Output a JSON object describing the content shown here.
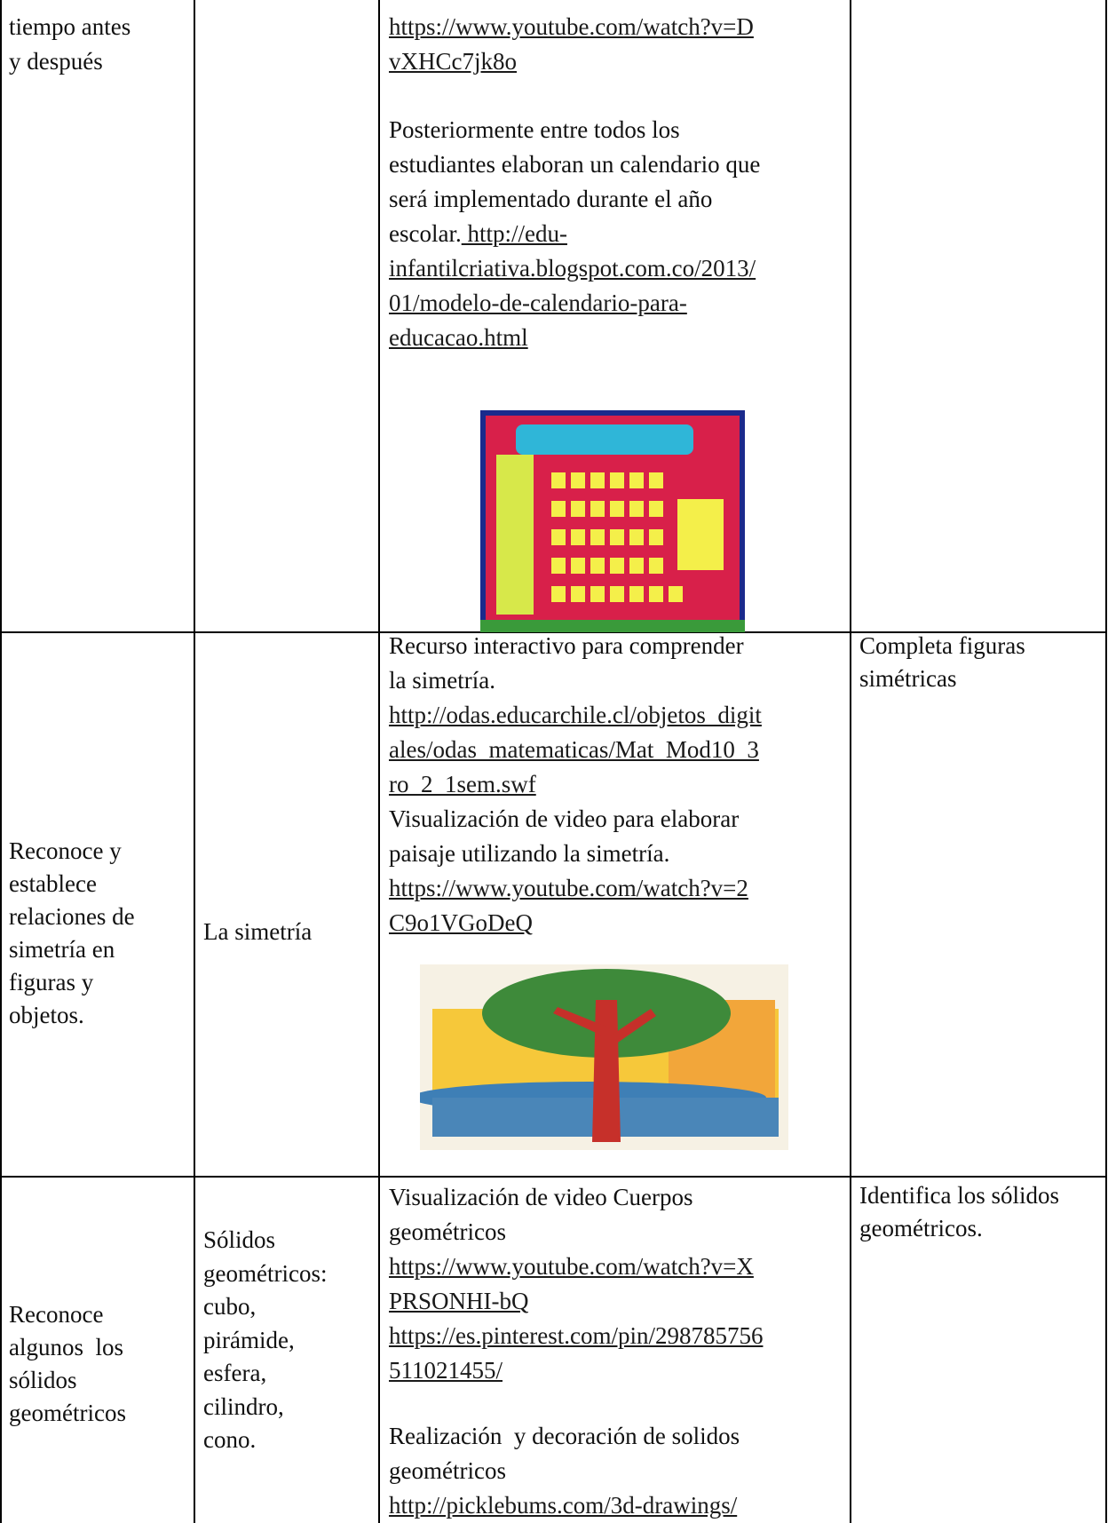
{
  "table": {
    "rows": [
      {
        "competence": [
          "tiempo antes",
          "y después"
        ],
        "activities": [
          [
            [
              {
                "link": "https://www.youtube.com/watch?v=D"
              }
            ],
            [
              {
                "link": "vXHCc7jk8o"
              }
            ]
          ],
          [
            [
              "Posteriormente entre todos los"
            ],
            [
              "estudiantes elaboran un calendario que"
            ],
            [
              "será implementado durante el año"
            ],
            [
              "escolar.",
              {
                "link": " http://edu-"
              }
            ],
            [
              {
                "link": "infantilcriativa.blogspot.com.co/2013/"
              }
            ],
            [
              {
                "link": "01/modelo-de-calendario-para-"
              }
            ],
            [
              {
                "link": "educacao.html"
              }
            ]
          ]
        ]
      },
      {
        "competence": [
          "Reconoce y",
          "establece",
          "relaciones de",
          "simetría en",
          "figuras y",
          "objetos."
        ],
        "content": [
          "La simetría"
        ],
        "activities": [
          [
            [
              "Recurso interactivo para comprender"
            ],
            [
              "la simetría."
            ],
            [
              {
                "link": "http://odas.educarchile.cl/objetos_digit"
              }
            ],
            [
              {
                "link": "ales/odas_matematicas/Mat_Mod10_3"
              }
            ],
            [
              {
                "link": "ro_2_1sem.swf"
              }
            ],
            [
              "Visualización de video para elaborar"
            ],
            [
              "paisaje utilizando la simetría."
            ],
            [
              {
                "link": "https://www.youtube.com/watch?v=2"
              }
            ],
            [
              {
                "link": "C9o1VGoDeQ"
              }
            ]
          ]
        ],
        "evaluation": [
          "Completa figuras",
          "simétricas"
        ]
      },
      {
        "competence": [
          "Reconoce",
          "algunos  los",
          "sólidos",
          "geométricos"
        ],
        "content": [
          "Sólidos",
          "geométricos:",
          "cubo,",
          "pirámide,",
          "esfera,",
          "cilindro,",
          "cono."
        ],
        "activities": [
          [
            [
              "Visualización de video Cuerpos"
            ],
            [
              "geométricos"
            ],
            [
              {
                "link": "https://www.youtube.com/watch?v=X"
              }
            ],
            [
              {
                "link": "PRSONHI-bQ"
              }
            ],
            [
              {
                "link": "https://es.pinterest.com/pin/298785756"
              }
            ],
            [
              {
                "link": "511021455/"
              }
            ]
          ],
          [
            [
              "Realización  y decoración de solidos"
            ],
            [
              "geométricos"
            ],
            [
              {
                "link": "http://picklebums.com/3d-drawings/"
              }
            ]
          ]
        ],
        "evaluation": [
          "Identifica los sólidos",
          "geométricos."
        ]
      }
    ]
  }
}
